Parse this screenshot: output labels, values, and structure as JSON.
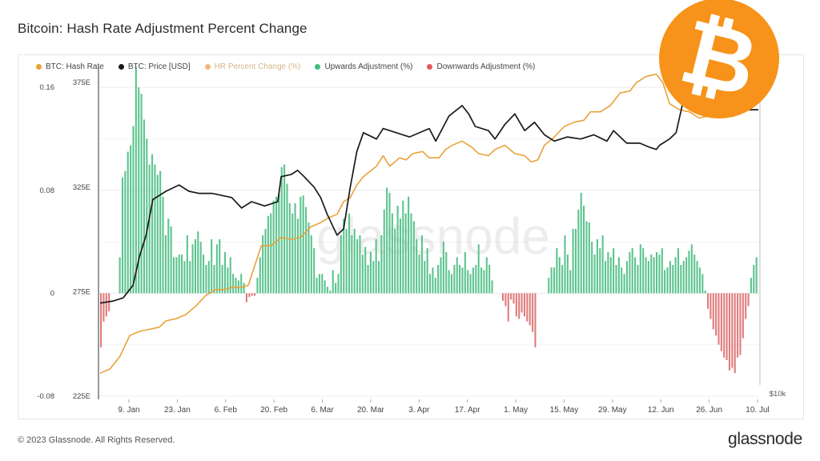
{
  "header": {
    "title": "Bitcoin: Hash Rate Adjustment Percent Change"
  },
  "footer": {
    "copyright": "© 2023 Glassnode. All Rights Reserved.",
    "brand": "glassnode"
  },
  "logo": {
    "icon": "bitcoin-logo-icon",
    "glyph": "₿",
    "color": "#f7931a"
  },
  "watermark": "glassnode",
  "chart_data": {
    "type": "bar",
    "title": "Bitcoin: Hash Rate Adjustment Percent Change",
    "legend": [
      {
        "label": "BTC: Hash Rate",
        "color": "#e8a23a",
        "faded": false
      },
      {
        "label": "BTC: Price [USD]",
        "color": "#1a1a1a",
        "faded": false
      },
      {
        "label": "HR Percent Change (%)",
        "color": "#f3b67a",
        "faded": true
      },
      {
        "label": "Upwards Adjustment (%)",
        "color": "#3dbf7e",
        "faded": false
      },
      {
        "label": "Downwards Adjustment (%)",
        "color": "#e15a5a",
        "faded": false
      }
    ],
    "legend_position": "top-left",
    "x_tick_labels": [
      "9. Jan",
      "23. Jan",
      "6. Feb",
      "20. Feb",
      "6. Mar",
      "20. Mar",
      "3. Apr",
      "17. Apr",
      "1. May",
      "15. May",
      "29. May",
      "12. Jun",
      "26. Jun",
      "10. Jul"
    ],
    "left_axis": {
      "ticks": [
        -0.08,
        0,
        0.08,
        0.16
      ],
      "labels": [
        "-0.08",
        "0",
        "0.08",
        "0.16"
      ],
      "range": [
        -0.08,
        0.18
      ]
    },
    "price_axis": {
      "ticks": [
        225,
        275,
        325,
        375
      ],
      "labels": [
        "225E",
        "275E",
        "325E",
        "375E"
      ],
      "range": [
        225,
        385
      ]
    },
    "right_axis_label": "$10k",
    "grid": true,
    "bar_values": [
      -0.042,
      -0.022,
      -0.018,
      -0.014,
      0,
      0,
      0,
      0.028,
      0.09,
      0.095,
      0.11,
      0.115,
      0.13,
      0.176,
      0.16,
      0.155,
      0.135,
      0.12,
      0.1,
      0.108,
      0.1,
      0.092,
      0.095,
      0.075,
      0.045,
      0.058,
      0.052,
      0.028,
      0.028,
      0.03,
      0.03,
      0.025,
      0.045,
      0.025,
      0.038,
      0.042,
      0.048,
      0.04,
      0.03,
      0.022,
      0.025,
      0.042,
      0.022,
      0.038,
      0.042,
      0.022,
      0.032,
      0.02,
      0.028,
      0.015,
      0.012,
      0.01,
      0.015,
      0.008,
      -0.007,
      -0.003,
      -0.002,
      -0.002,
      0.012,
      0.028,
      0.045,
      0.05,
      0.06,
      0.062,
      0.072,
      0.075,
      0.078,
      0.098,
      0.1,
      0.085,
      0.07,
      0.062,
      0.07,
      0.058,
      0.075,
      0.076,
      0.067,
      0.055,
      0.045,
      0.035,
      0.012,
      0.015,
      0.015,
      0.01,
      0.005,
      0.002,
      0.018,
      0.008,
      0.015,
      0.045,
      0.058,
      0.05,
      0.062,
      0.045,
      0.05,
      0.042,
      0.045,
      0.03,
      0.036,
      0.022,
      0.032,
      0.025,
      0.042,
      0.025,
      0.045,
      0.065,
      0.082,
      0.078,
      0.062,
      0.05,
      0.068,
      0.058,
      0.072,
      0.062,
      0.075,
      0.062,
      0.056,
      0.042,
      0.03,
      0.045,
      0.025,
      0.035,
      0.015,
      0.02,
      0.012,
      0.022,
      0.028,
      0.04,
      0.032,
      0.018,
      0.015,
      0.022,
      0.028,
      0.022,
      0.02,
      0.032,
      0.018,
      0.015,
      0.02,
      0.022,
      0.038,
      0.02,
      0.018,
      0.028,
      0.022,
      0.01,
      0,
      0,
      0,
      -0.006,
      -0.01,
      -0.022,
      -0.005,
      -0.008,
      -0.018,
      -0.02,
      -0.015,
      -0.018,
      -0.022,
      -0.025,
      -0.03,
      -0.042,
      0,
      0,
      0,
      0,
      0.012,
      0.02,
      0.02,
      0.035,
      0.028,
      0.022,
      0.045,
      0.03,
      0.018,
      0.05,
      0.05,
      0.065,
      0.078,
      0.068,
      0.056,
      0.055,
      0.04,
      0.03,
      0.042,
      0.035,
      0.045,
      0.025,
      0.032,
      0.028,
      0.035,
      0.022,
      0.028,
      0.02,
      0.015,
      0.025,
      0.032,
      0.035,
      0.028,
      0.022,
      0.038,
      0.035,
      0.028,
      0.025,
      0.03,
      0.028,
      0.032,
      0.03,
      0.035,
      0.018,
      0.02,
      0.025,
      0.022,
      0.028,
      0.035,
      0.022,
      0.025,
      0.028,
      0.033,
      0.038,
      0.03,
      0.025,
      0.02,
      0.015,
      0.002,
      -0.012,
      -0.02,
      -0.028,
      -0.033,
      -0.04,
      -0.045,
      -0.05,
      -0.052,
      -0.06,
      -0.058,
      -0.062,
      -0.05,
      -0.048,
      -0.035,
      -0.02,
      -0.01,
      0.012,
      0.022,
      0.028
    ],
    "price_series": [
      [
        0,
        269.5
      ],
      [
        0.02,
        270.5
      ],
      [
        0.035,
        272
      ],
      [
        0.05,
        278
      ],
      [
        0.06,
        292
      ],
      [
        0.07,
        302
      ],
      [
        0.08,
        319
      ],
      [
        0.1,
        323
      ],
      [
        0.12,
        326
      ],
      [
        0.135,
        323
      ],
      [
        0.15,
        322
      ],
      [
        0.17,
        322
      ],
      [
        0.2,
        320
      ],
      [
        0.215,
        315
      ],
      [
        0.23,
        318
      ],
      [
        0.25,
        316
      ],
      [
        0.27,
        318
      ],
      [
        0.275,
        330
      ],
      [
        0.29,
        331
      ],
      [
        0.3,
        333
      ],
      [
        0.31,
        330
      ],
      [
        0.325,
        325
      ],
      [
        0.335,
        320
      ],
      [
        0.345,
        312
      ],
      [
        0.36,
        302
      ],
      [
        0.37,
        305
      ],
      [
        0.38,
        325
      ],
      [
        0.39,
        342
      ],
      [
        0.4,
        351
      ],
      [
        0.42,
        348
      ],
      [
        0.43,
        353
      ],
      [
        0.45,
        351
      ],
      [
        0.47,
        349
      ],
      [
        0.5,
        353
      ],
      [
        0.51,
        347
      ],
      [
        0.53,
        359
      ],
      [
        0.55,
        364
      ],
      [
        0.56,
        360
      ],
      [
        0.57,
        354
      ],
      [
        0.59,
        352
      ],
      [
        0.6,
        348
      ],
      [
        0.615,
        355
      ],
      [
        0.63,
        360
      ],
      [
        0.645,
        352
      ],
      [
        0.66,
        356
      ],
      [
        0.675,
        350
      ],
      [
        0.69,
        347
      ],
      [
        0.71,
        349
      ],
      [
        0.73,
        348
      ],
      [
        0.75,
        350
      ],
      [
        0.77,
        347
      ],
      [
        0.78,
        352
      ],
      [
        0.8,
        346
      ],
      [
        0.82,
        346
      ],
      [
        0.835,
        344
      ],
      [
        0.845,
        343
      ],
      [
        0.85,
        345
      ],
      [
        0.865,
        348
      ],
      [
        0.875,
        351
      ],
      [
        0.885,
        365
      ],
      [
        0.9,
        363
      ],
      [
        0.91,
        362
      ],
      [
        0.93,
        364
      ],
      [
        0.95,
        364
      ],
      [
        0.97,
        362
      ],
      [
        1,
        362
      ]
    ],
    "hashrate_series": [
      [
        0,
        236
      ],
      [
        0.015,
        238
      ],
      [
        0.03,
        244
      ],
      [
        0.045,
        254
      ],
      [
        0.06,
        256
      ],
      [
        0.075,
        257
      ],
      [
        0.09,
        258
      ],
      [
        0.1,
        261
      ],
      [
        0.115,
        262
      ],
      [
        0.13,
        264
      ],
      [
        0.145,
        268
      ],
      [
        0.16,
        273
      ],
      [
        0.175,
        276
      ],
      [
        0.19,
        276
      ],
      [
        0.2,
        277
      ],
      [
        0.215,
        277
      ],
      [
        0.225,
        278
      ],
      [
        0.245,
        297
      ],
      [
        0.26,
        297
      ],
      [
        0.275,
        301
      ],
      [
        0.29,
        300
      ],
      [
        0.305,
        301
      ],
      [
        0.32,
        306
      ],
      [
        0.335,
        308
      ],
      [
        0.345,
        310
      ],
      [
        0.36,
        312
      ],
      [
        0.37,
        318
      ],
      [
        0.38,
        320
      ],
      [
        0.39,
        326
      ],
      [
        0.4,
        330
      ],
      [
        0.42,
        335
      ],
      [
        0.43,
        340
      ],
      [
        0.44,
        335
      ],
      [
        0.455,
        339
      ],
      [
        0.465,
        338
      ],
      [
        0.475,
        341
      ],
      [
        0.49,
        342
      ],
      [
        0.5,
        339
      ],
      [
        0.515,
        339
      ],
      [
        0.525,
        343
      ],
      [
        0.535,
        345
      ],
      [
        0.55,
        347
      ],
      [
        0.565,
        344
      ],
      [
        0.575,
        341
      ],
      [
        0.59,
        340
      ],
      [
        0.6,
        343
      ],
      [
        0.615,
        345
      ],
      [
        0.63,
        341
      ],
      [
        0.645,
        340
      ],
      [
        0.655,
        337
      ],
      [
        0.665,
        338
      ],
      [
        0.675,
        345
      ],
      [
        0.69,
        349
      ],
      [
        0.705,
        354
      ],
      [
        0.72,
        356
      ],
      [
        0.735,
        357
      ],
      [
        0.745,
        361
      ],
      [
        0.76,
        361
      ],
      [
        0.775,
        364
      ],
      [
        0.79,
        370
      ],
      [
        0.805,
        371
      ],
      [
        0.815,
        375
      ],
      [
        0.83,
        378
      ],
      [
        0.845,
        379
      ],
      [
        0.855,
        375
      ],
      [
        0.865,
        365
      ],
      [
        0.88,
        362
      ],
      [
        0.895,
        361
      ],
      [
        0.91,
        358
      ],
      [
        0.925,
        359
      ],
      [
        0.94,
        361
      ],
      [
        0.955,
        359
      ],
      [
        0.97,
        369
      ],
      [
        0.985,
        378
      ],
      [
        1,
        379
      ]
    ]
  }
}
